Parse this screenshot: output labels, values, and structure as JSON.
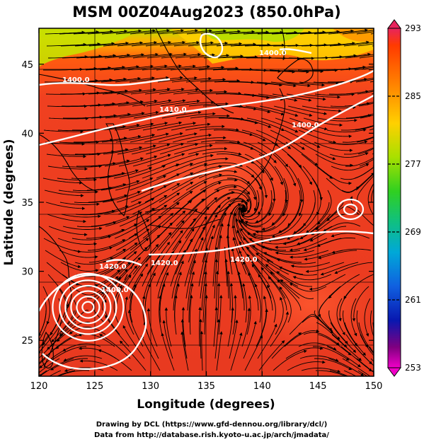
{
  "title": "MSM 00Z04Aug2023 (850.0hPa)",
  "xaxis": {
    "label": "Longitude (degrees)",
    "range": [
      120,
      150
    ],
    "ticks": [
      "120",
      "125",
      "130",
      "135",
      "140",
      "145",
      "150"
    ]
  },
  "yaxis": {
    "label": "Latitude  (degrees)",
    "range": [
      22.4,
      47.6
    ],
    "ticks": [
      "25",
      "30",
      "35",
      "40",
      "45"
    ]
  },
  "colorbar": {
    "ticks": [
      "293",
      "285",
      "277",
      "269",
      "261",
      "253"
    ],
    "colors": [
      "#e8245e",
      "#ff3a00",
      "#ff8c00",
      "#ffd000",
      "#a8e000",
      "#30d020",
      "#10c080",
      "#00a8d8",
      "#1060e0",
      "#0818b0",
      "#800080",
      "#f000c8"
    ]
  },
  "contour_labels": [
    "1400.0",
    "1410.0",
    "1420.0"
  ],
  "credits": {
    "line1": "Drawing by DCL (https://www.gfd-dennou.org/library/dcl/)",
    "line2": "Data from http://database.rish.kyoto-u.ac.jp/arch/jmadata/"
  },
  "map_features": [
    {
      "name": "typhoon",
      "lon": 124.4,
      "lat": 27.4
    },
    {
      "name": "cyclonic-vortex",
      "lon": 147.6,
      "lat": 35.1
    }
  ]
}
